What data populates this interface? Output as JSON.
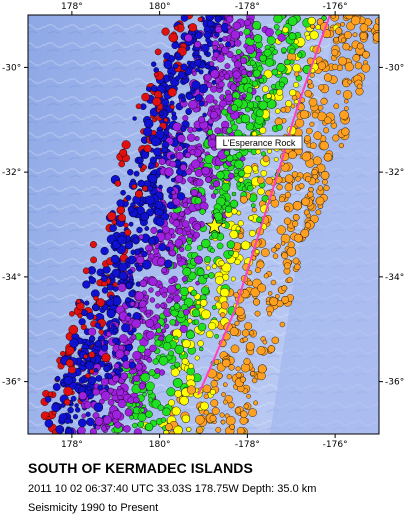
{
  "map": {
    "lon_range": [
      177,
      185
    ],
    "lat_range": [
      -37,
      -29
    ],
    "lon_ticks": [
      {
        "value": 178,
        "label": "178°"
      },
      {
        "value": 180,
        "label": "180°"
      },
      {
        "value": 182,
        "label": "-178°"
      },
      {
        "value": 184,
        "label": "-176°"
      }
    ],
    "lat_ticks": [
      {
        "value": -30,
        "label": "-30°"
      },
      {
        "value": -32,
        "label": "-32°"
      },
      {
        "value": -34,
        "label": "-34°"
      },
      {
        "value": -36,
        "label": "-36°"
      }
    ],
    "colors": {
      "ocean_deep": "#6f8fd6",
      "ocean_light": "#b8c8f0",
      "trench_line": "#ff3fbf",
      "depth_shallow": "#ffa020",
      "depth_mid": "#ffff00",
      "depth_intermediate": "#20e020",
      "depth_deep": "#a020e0",
      "depth_very_deep": "#1010d0",
      "depth_deepest": "#e01010"
    },
    "place_label": "L'Esperance Rock",
    "epicenter_marker": "yellow-star",
    "epicenter": {
      "lon": 181.25,
      "lat": -33.03
    }
  },
  "caption": {
    "title": "SOUTH OF KERMADEC ISLANDS",
    "event_line": "2011 10 02 06:37:40 UTC 33.03S 178.75W Depth: 35.0 km",
    "range_line": "Seismicity 1990 to Present"
  }
}
